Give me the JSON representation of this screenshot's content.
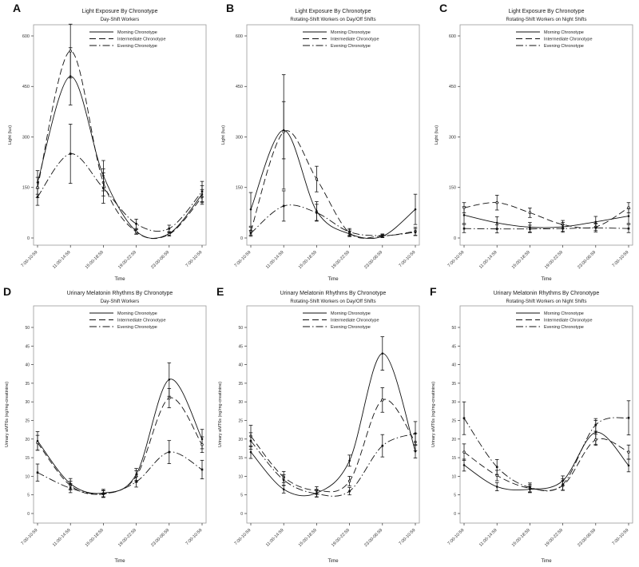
{
  "figure": {
    "background": "#ffffff",
    "text_color": "#1a1a1a",
    "curve_color": "#111111",
    "box_color": "#999999",
    "tick_color": "#333333"
  },
  "chart_data": [
    {
      "type": "line",
      "panel_label": "A",
      "row": "top",
      "title": "Light Exposure By Chronotype",
      "subtitle": "Day-Shift Workers",
      "xlabel": "Time",
      "ylabel": "Light (lux)",
      "categories": [
        "7:00-10:59",
        "11:00-14:59",
        "15:00-18:59",
        "19:00-22:59",
        "23:00-06:59",
        "7:00-10:59"
      ],
      "yticks": [
        0,
        150,
        300,
        450,
        600
      ],
      "ylim": [
        0,
        628
      ],
      "legend_position": "top-right-inside",
      "error_bars": true,
      "series": [
        {
          "name": "Morning Chronotype",
          "line_style": "solid",
          "values": [
            165,
            480,
            185,
            20,
            13,
            130
          ],
          "errors": [
            35,
            85,
            45,
            8,
            6,
            25
          ]
        },
        {
          "name": "Intermediate Chronotype",
          "line_style": "dashed",
          "values": [
            150,
            555,
            165,
            18,
            11,
            122
          ],
          "errors": [
            30,
            80,
            40,
            7,
            5,
            22
          ]
        },
        {
          "name": "Evening Chronotype",
          "line_style": "dashdot",
          "values": [
            122,
            250,
            148,
            42,
            28,
            138
          ],
          "errors": [
            25,
            88,
            45,
            14,
            10,
            30
          ]
        }
      ]
    },
    {
      "type": "line",
      "panel_label": "B",
      "row": "top",
      "title": "Light Exposure By Chronotype",
      "subtitle": "Rotating-Shift Workers on Day/Off Shifts",
      "xlabel": "Time",
      "ylabel": "Light (lux)",
      "categories": [
        "7:00-10:59",
        "11:00-14:59",
        "15:00-18:59",
        "19:00-22:59",
        "23:00-06:59",
        "7:00-10:59"
      ],
      "yticks": [
        0,
        150,
        300,
        450,
        600
      ],
      "ylim": [
        0,
        628
      ],
      "legend_position": "top-right-inside",
      "error_bars": true,
      "series": [
        {
          "name": "Morning Chronotype",
          "line_style": "solid",
          "values": [
            85,
            320,
            80,
            12,
            5,
            85
          ],
          "errors": [
            50,
            85,
            28,
            8,
            4,
            45
          ]
        },
        {
          "name": "Intermediate Chronotype",
          "line_style": "dashed",
          "values": [
            20,
            315,
            175,
            15,
            6,
            20
          ],
          "errors": [
            12,
            170,
            38,
            9,
            4,
            12
          ]
        },
        {
          "name": "Evening Chronotype",
          "line_style": "dashdot",
          "values": [
            14,
            95,
            75,
            18,
            7,
            17
          ],
          "errors": [
            9,
            45,
            25,
            10,
            5,
            10
          ]
        }
      ]
    },
    {
      "type": "line",
      "panel_label": "C",
      "row": "top",
      "title": "Light Exposure By Chronotype",
      "subtitle": "Rotating-Shift Workers on Night Shifts",
      "xlabel": "Time",
      "ylabel": "Light (lux)",
      "categories": [
        "7:00-10:59",
        "11:00-14:59",
        "15:00-18:59",
        "19:00-22:59",
        "23:00-06:59",
        "7:00-10:59"
      ],
      "yticks": [
        0,
        150,
        300,
        450,
        600
      ],
      "ylim": [
        0,
        628
      ],
      "legend_position": "top-right-inside",
      "error_bars": true,
      "series": [
        {
          "name": "Morning Chronotype",
          "line_style": "solid",
          "values": [
            68,
            45,
            32,
            33,
            48,
            65
          ],
          "errors": [
            25,
            18,
            14,
            13,
            16,
            22
          ]
        },
        {
          "name": "Intermediate Chronotype",
          "line_style": "dashed",
          "values": [
            90,
            105,
            75,
            40,
            33,
            90
          ],
          "errors": [
            15,
            22,
            14,
            12,
            11,
            15
          ]
        },
        {
          "name": "Evening Chronotype",
          "line_style": "dashdot",
          "values": [
            28,
            27,
            27,
            28,
            30,
            28
          ],
          "errors": [
            12,
            12,
            11,
            11,
            12,
            12
          ]
        }
      ]
    },
    {
      "type": "line",
      "panel_label": "D",
      "row": "bottom",
      "title": "Urinary Melatonin Rhythms By Chronotype",
      "subtitle": "Day-Shift Workers",
      "xlabel": "Time",
      "ylabel": "Urinary aMT6s (ng/mg-creatinine)",
      "categories": [
        "7:00-10:59",
        "11:00-14:59",
        "15:00-18:59",
        "19:00-22:59",
        "23:00-06:59",
        "7:00-10:59"
      ],
      "yticks": [
        0,
        5,
        10,
        15,
        20,
        25,
        30,
        35,
        40,
        45,
        50
      ],
      "ylim": [
        0,
        56
      ],
      "legend_position": "top-right-inside",
      "error_bars": true,
      "series": [
        {
          "name": "Morning Chronotype",
          "line_style": "solid",
          "values": [
            19.5,
            8,
            5.5,
            10.5,
            36,
            20
          ],
          "errors": [
            2.5,
            1.4,
            1,
            1.6,
            4.5,
            2.6
          ]
        },
        {
          "name": "Intermediate Chronotype",
          "line_style": "dashed",
          "values": [
            19,
            7.5,
            5.3,
            10,
            31,
            18.5
          ],
          "errors": [
            2,
            1.2,
            0.9,
            1.5,
            2.6,
            2.1
          ]
        },
        {
          "name": "Evening Chronotype",
          "line_style": "dashdot",
          "values": [
            11,
            6.8,
            5.2,
            8.5,
            16.5,
            11.8
          ],
          "errors": [
            2.3,
            1.2,
            0.9,
            1.4,
            3.1,
            2.5
          ]
        }
      ]
    },
    {
      "type": "line",
      "panel_label": "E",
      "row": "bottom",
      "title": "Urinary Melatonin Rhythms By Chronotype",
      "subtitle": "Rotating-Shift Workers on Day/Off Shifts",
      "xlabel": "Time",
      "ylabel": "Urinary aMT6s (ng/mg-creatinine)",
      "categories": [
        "7:00-10:59",
        "11:00-14:59",
        "15:00-18:59",
        "19:00-22:59",
        "23:00-06:59",
        "7:00-10:59"
      ],
      "yticks": [
        0,
        5,
        10,
        15,
        20,
        25,
        30,
        35,
        40,
        45,
        50
      ],
      "ylim": [
        0,
        56
      ],
      "legend_position": "top-right-inside",
      "error_bars": true,
      "series": [
        {
          "name": "Morning Chronotype",
          "line_style": "solid",
          "values": [
            16.5,
            6.5,
            5.5,
            14.2,
            43,
            16.7
          ],
          "errors": [
            1.7,
            1,
            1,
            1.5,
            4.5,
            1.8
          ]
        },
        {
          "name": "Intermediate Chronotype",
          "line_style": "dashed",
          "values": [
            20.8,
            9.8,
            6.2,
            8.7,
            30.5,
            19.2
          ],
          "errors": [
            2.9,
            1.5,
            1,
            1.3,
            3.3,
            2.3
          ]
        },
        {
          "name": "Evening Chronotype",
          "line_style": "dashdot",
          "values": [
            19.5,
            9,
            5.3,
            6,
            18.2,
            21.5
          ],
          "errors": [
            2.2,
            1.4,
            0.9,
            1,
            3,
            3.2
          ]
        }
      ]
    },
    {
      "type": "line",
      "panel_label": "F",
      "row": "bottom",
      "title": "Urinary Melatonin Rhythms By Chronotype",
      "subtitle": "Rotating-Shift Workers on Night Shifts",
      "xlabel": "Time",
      "ylabel": "Urinary aMT6s (ng/mg-creatinine)",
      "categories": [
        "7:00-10:59",
        "11:00-14:59",
        "15:00-18:59",
        "19:00-22:59",
        "23:00-06:59",
        "7:00-10:59"
      ],
      "yticks": [
        0,
        5,
        10,
        15,
        20,
        25,
        30,
        35,
        40,
        45,
        50
      ],
      "ylim": [
        0,
        56
      ],
      "legend_position": "top-right-inside",
      "error_bars": true,
      "series": [
        {
          "name": "Morning Chronotype",
          "line_style": "solid",
          "values": [
            13,
            7.2,
            6.5,
            8.8,
            21.8,
            12.9
          ],
          "errors": [
            1.6,
            1.1,
            0.9,
            1.3,
            3.2,
            1.7
          ]
        },
        {
          "name": "Intermediate Chronotype",
          "line_style": "dashed",
          "values": [
            16.5,
            10.2,
            6.8,
            7.5,
            19.8,
            16.5
          ],
          "errors": [
            2.2,
            1.4,
            1,
            1.3,
            1.5,
            1.9
          ]
        },
        {
          "name": "Evening Chronotype",
          "line_style": "dashdot",
          "values": [
            25.6,
            12.5,
            7,
            7.8,
            23.8,
            25.7
          ],
          "errors": [
            4.4,
            2,
            1.2,
            1.5,
            1.7,
            4.6
          ]
        }
      ]
    }
  ]
}
